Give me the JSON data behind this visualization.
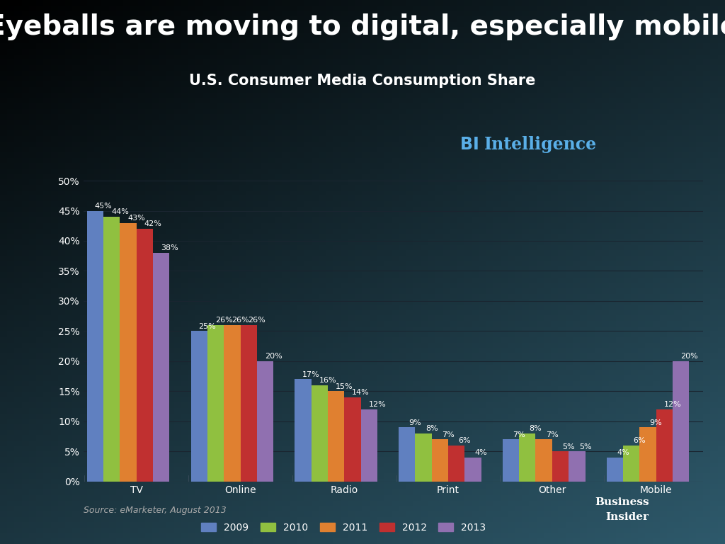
{
  "title": "Eyeballs are moving to digital, especially mobile",
  "subtitle": "U.S. Consumer Media Consumption Share",
  "source": "Source: eMarketer, August 2013",
  "bi_text": "BI  Intelligence",
  "categories": [
    "TV",
    "Online",
    "Radio",
    "Print",
    "Other",
    "Mobile"
  ],
  "years": [
    "2009",
    "2010",
    "2011",
    "2012",
    "2013"
  ],
  "data": {
    "TV": [
      45,
      44,
      43,
      42,
      38
    ],
    "Online": [
      25,
      26,
      26,
      26,
      20
    ],
    "Radio": [
      17,
      16,
      15,
      14,
      12
    ],
    "Print": [
      9,
      8,
      7,
      6,
      4
    ],
    "Other": [
      7,
      8,
      7,
      5,
      5
    ],
    "Mobile": [
      4,
      6,
      9,
      12,
      20
    ]
  },
  "bar_colors": [
    "#6080c0",
    "#90c040",
    "#e08030",
    "#c03030",
    "#9070b0"
  ],
  "ylim": [
    0,
    52
  ],
  "yticks": [
    0,
    5,
    10,
    15,
    20,
    25,
    30,
    35,
    40,
    45,
    50
  ],
  "title_fontsize": 28,
  "subtitle_fontsize": 15,
  "label_fontsize": 8,
  "tick_fontsize": 10,
  "legend_fontsize": 10
}
